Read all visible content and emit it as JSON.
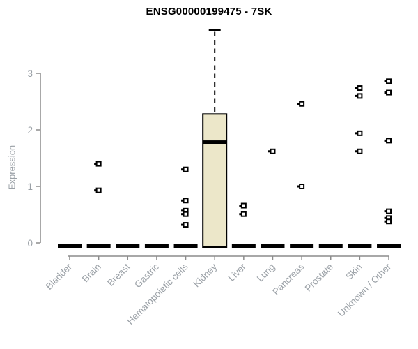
{
  "chart_data": {
    "type": "boxplot",
    "title": "ENSG00000199475 - 7SK",
    "ylabel": "Expression",
    "yticks": [
      0,
      1,
      2,
      3
    ],
    "ylim": [
      0,
      3.9
    ],
    "grid": false,
    "legend": "none",
    "categories": [
      "Bladder",
      "Brain",
      "Breast",
      "Gastric",
      "Hematopoietic cells",
      "Kidney",
      "Liver",
      "Lung",
      "Pancreas",
      "Prostate",
      "Skin",
      "Unknown / Other"
    ],
    "series": [
      {
        "category": "Bladder",
        "q1": 0,
        "median": 0,
        "q3": 0,
        "whisker_low": 0,
        "whisker_high": 0,
        "outliers": []
      },
      {
        "category": "Brain",
        "q1": 0,
        "median": 0,
        "q3": 0,
        "whisker_low": 0,
        "whisker_high": 0,
        "outliers": [
          1.4,
          0.93
        ]
      },
      {
        "category": "Breast",
        "q1": 0,
        "median": 0,
        "q3": 0,
        "whisker_low": 0,
        "whisker_high": 0,
        "outliers": []
      },
      {
        "category": "Gastric",
        "q1": 0,
        "median": 0,
        "q3": 0,
        "whisker_low": 0,
        "whisker_high": 0,
        "outliers": []
      },
      {
        "category": "Hematopoietic cells",
        "q1": 0,
        "median": 0,
        "q3": 0,
        "whisker_low": 0,
        "whisker_high": 0,
        "outliers": [
          1.3,
          0.75,
          0.57,
          0.51,
          0.32
        ]
      },
      {
        "category": "Kidney",
        "q1": 0,
        "median": 1.78,
        "q3": 2.28,
        "whisker_low": 0,
        "whisker_high": 3.76,
        "outliers": []
      },
      {
        "category": "Liver",
        "q1": 0,
        "median": 0,
        "q3": 0,
        "whisker_low": 0,
        "whisker_high": 0,
        "outliers": [
          0.66,
          0.51
        ]
      },
      {
        "category": "Lung",
        "q1": 0,
        "median": 0,
        "q3": 0,
        "whisker_low": 0,
        "whisker_high": 0,
        "outliers": [
          1.62
        ]
      },
      {
        "category": "Pancreas",
        "q1": 0,
        "median": 0,
        "q3": 0,
        "whisker_low": 0,
        "whisker_high": 0,
        "outliers": [
          2.46,
          1.0
        ]
      },
      {
        "category": "Prostate",
        "q1": 0,
        "median": 0,
        "q3": 0,
        "whisker_low": 0,
        "whisker_high": 0,
        "outliers": []
      },
      {
        "category": "Skin",
        "q1": 0,
        "median": 0,
        "q3": 0,
        "whisker_low": 0,
        "whisker_high": 0,
        "outliers": [
          2.74,
          2.6,
          1.94,
          1.62
        ]
      },
      {
        "category": "Unknown / Other",
        "q1": 0,
        "median": 0,
        "q3": 0,
        "whisker_low": 0,
        "whisker_high": 0,
        "outliers": [
          2.86,
          2.66,
          1.81,
          0.56,
          0.44,
          0.38
        ]
      }
    ]
  },
  "colors": {
    "box_fill": "#ECE7C9",
    "box_stroke": "#000000",
    "median": "#000000",
    "axis_line": "#8c8c8c",
    "tick_label": "#9aa0a6",
    "title": "#000000",
    "background": "#ffffff"
  }
}
